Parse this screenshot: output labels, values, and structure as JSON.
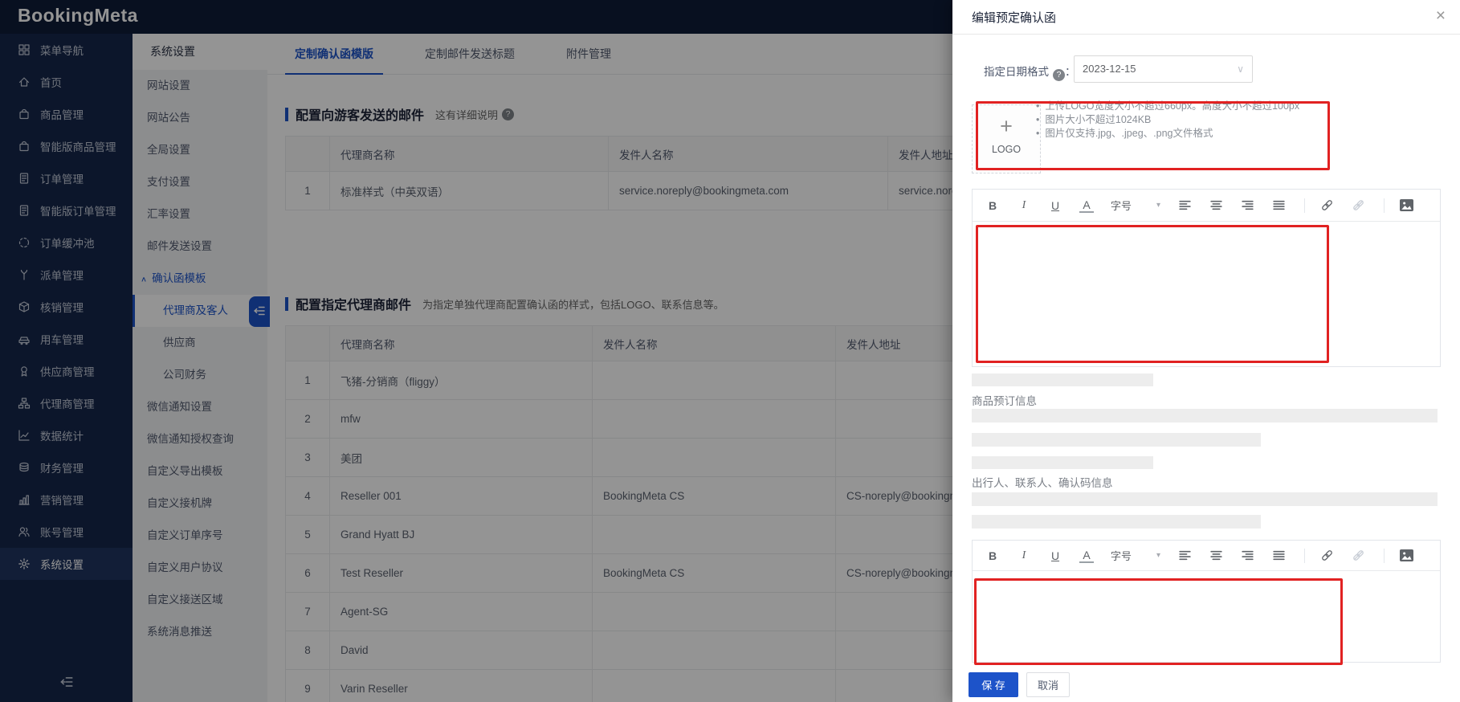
{
  "brand": {
    "logo": "BookingMeta"
  },
  "sidebar": {
    "items": [
      {
        "label": "菜单导航",
        "icon": "grid-icon",
        "active": false
      },
      {
        "label": "首页",
        "icon": "home-icon",
        "active": false
      },
      {
        "label": "商品管理",
        "icon": "bag-icon",
        "active": false
      },
      {
        "label": "智能版商品管理",
        "icon": "bag-icon",
        "active": false
      },
      {
        "label": "订单管理",
        "icon": "doc-icon",
        "active": false
      },
      {
        "label": "智能版订单管理",
        "icon": "doc-icon",
        "active": false
      },
      {
        "label": "订单缓冲池",
        "icon": "spinner-icon",
        "active": false
      },
      {
        "label": "派单管理",
        "icon": "fork-icon",
        "active": false
      },
      {
        "label": "核销管理",
        "icon": "cube-icon",
        "active": false
      },
      {
        "label": "用车管理",
        "icon": "car-icon",
        "active": false
      },
      {
        "label": "供应商管理",
        "icon": "medal-icon",
        "active": false
      },
      {
        "label": "代理商管理",
        "icon": "network-icon",
        "active": false
      },
      {
        "label": "数据统计",
        "icon": "chart-icon",
        "active": false
      },
      {
        "label": "财务管理",
        "icon": "coins-icon",
        "active": false
      },
      {
        "label": "营销管理",
        "icon": "growth-icon",
        "active": false
      },
      {
        "label": "账号管理",
        "icon": "users-icon",
        "active": false
      },
      {
        "label": "系统设置",
        "icon": "gear-icon",
        "active": true
      }
    ]
  },
  "submenu": {
    "title": "系统设置",
    "caret_up": "∧",
    "items": [
      {
        "label": "网站设置"
      },
      {
        "label": "网站公告"
      },
      {
        "label": "全局设置"
      },
      {
        "label": "支付设置"
      },
      {
        "label": "汇率设置"
      },
      {
        "label": "邮件发送设置"
      },
      {
        "label": "确认函模板",
        "group": true,
        "expanded": true
      },
      {
        "label": "代理商及客人",
        "child": true,
        "selected": true
      },
      {
        "label": "供应商",
        "child": true
      },
      {
        "label": "公司财务",
        "child": true
      },
      {
        "label": "微信通知设置"
      },
      {
        "label": "微信通知授权查询"
      },
      {
        "label": "自定义导出模板"
      },
      {
        "label": "自定义接机牌"
      },
      {
        "label": "自定义订单序号"
      },
      {
        "label": "自定义用户协议"
      },
      {
        "label": "自定义接送区域"
      },
      {
        "label": "系统消息推送"
      }
    ]
  },
  "main": {
    "tabs": [
      {
        "label": "定制确认函模版",
        "active": true
      },
      {
        "label": "定制邮件发送标题",
        "active": false
      },
      {
        "label": "附件管理",
        "active": false
      }
    ],
    "sections": [
      {
        "title": "配置向游客发送的邮件",
        "hint": "这有详细说明",
        "has_help_icon": true,
        "table": {
          "headers": [
            "",
            "代理商名称",
            "发件人名称",
            "发件人地址"
          ],
          "rows": [
            [
              "1",
              "标准样式（中英双语）",
              "service.noreply@bookingmeta.com",
              "service.noreply@bookingmeta.com"
            ]
          ]
        }
      },
      {
        "title": "配置指定代理商邮件",
        "hint": "为指定单独代理商配置确认函的样式，包括LOGO、联系信息等。",
        "has_help_icon": false,
        "table": {
          "headers": [
            "",
            "代理商名称",
            "发件人名称",
            "发件人地址"
          ],
          "rows": [
            [
              "1",
              "飞猪-分销商（fliggy）",
              "",
              ""
            ],
            [
              "2",
              "mfw",
              "",
              ""
            ],
            [
              "3",
              "美团",
              "",
              ""
            ],
            [
              "4",
              "Reseller 001",
              "BookingMeta CS",
              "CS-noreply@bookingmeta.com"
            ],
            [
              "5",
              "Grand Hyatt BJ",
              "",
              ""
            ],
            [
              "6",
              "Test Reseller",
              "BookingMeta CS",
              "CS-noreply@bookingmeta.com"
            ],
            [
              "7",
              "Agent-SG",
              "",
              ""
            ],
            [
              "8",
              "David",
              "",
              ""
            ],
            [
              "9",
              "Varin Reseller",
              "",
              ""
            ]
          ]
        }
      }
    ]
  },
  "drawer": {
    "title": "编辑预定确认函",
    "close_glyph": "×",
    "date_label": "指定日期格式",
    "date_colon": "：",
    "date_value": "2023-12-15",
    "select_chevron": "∨",
    "help_glyph": "?",
    "logo_upload": {
      "plus_glyph": "+",
      "label": "LOGO",
      "rules": [
        "上传LOGO宽度大小不超过660px。高度大小不超过100px",
        "图片大小不超过1024KB",
        "图片仅支持.jpg、.jpeg、.png文件格式"
      ]
    },
    "toolbar": {
      "bold": "B",
      "italic": "I",
      "underline": "U",
      "font_color": "A",
      "font_size": "字号",
      "caret": "▾"
    },
    "content_labels": {
      "booking_info": "商品预订信息",
      "traveler_info": "出行人、联系人、确认码信息"
    },
    "buttons": {
      "save": "保 存",
      "cancel": "取消"
    },
    "accent_color": "#1d53c9",
    "annotation_color": "#e12222"
  }
}
